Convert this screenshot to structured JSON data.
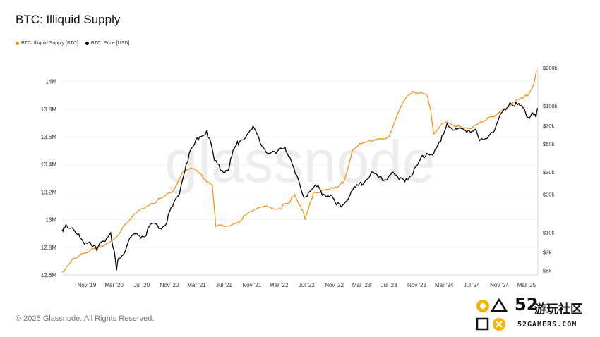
{
  "header": {
    "title": "BTC: Illiquid Supply"
  },
  "legend": [
    {
      "label": "BTC: Illiquid Supply [BTC]",
      "color": "#f7931a"
    },
    {
      "label": "BTC: Price [USD]",
      "color": "#000000"
    }
  ],
  "footer": {
    "copyright": "© 2025 Glassnode. All Rights Reserved."
  },
  "watermark": {
    "background": "glassnode",
    "logo_main": "52",
    "logo_cn": "游玩社区",
    "logo_sub": "52GAMERS.COM"
  },
  "chart_data": {
    "type": "line",
    "title": "BTC: Illiquid Supply",
    "x_tick_labels": [
      "Nov '19",
      "Mar '20",
      "Jul '20",
      "Nov '20",
      "Mar '21",
      "Jul '21",
      "Nov '21",
      "Mar '22",
      "Jul '22",
      "Nov '22",
      "Mar '23",
      "Jul '23",
      "Nov '23",
      "Mar '24",
      "Jul '24",
      "Nov '24",
      "Mar '25"
    ],
    "x_ticks": [
      "2019-11-01",
      "2020-03-01",
      "2020-07-01",
      "2020-11-01",
      "2021-03-01",
      "2021-07-01",
      "2021-11-01",
      "2022-03-01",
      "2022-07-01",
      "2022-11-01",
      "2023-03-01",
      "2023-07-01",
      "2023-11-01",
      "2024-03-01",
      "2024-07-01",
      "2024-11-01",
      "2025-03-01"
    ],
    "xlim": [
      "2019-07-15",
      "2025-04-20"
    ],
    "left_axis": {
      "ticks": [
        12.6,
        12.8,
        13,
        13.2,
        13.4,
        13.6,
        13.8,
        14
      ],
      "tick_labels": [
        "12.6M",
        "12.8M",
        "13M",
        "13.2M",
        "13.4M",
        "13.6M",
        "13.8M",
        "14M"
      ],
      "ylim": [
        12.6,
        14.1
      ],
      "unit": "M BTC"
    },
    "right_axis": {
      "scale": "log",
      "ticks": [
        5000,
        7000,
        10000,
        20000,
        30000,
        50000,
        70000,
        100000,
        200000
      ],
      "tick_labels": [
        "$5k",
        "$7k",
        "$10k",
        "$20k",
        "$30k",
        "$50k",
        "$70k",
        "$100k",
        "$200k"
      ],
      "ylim": [
        4600,
        200000
      ]
    },
    "grid": true,
    "legend_position": "top-left",
    "series": [
      {
        "name": "BTC: Illiquid Supply [BTC]",
        "axis": "left",
        "color": "#f7931a",
        "x": [
          "2019-07-15",
          "2019-09-01",
          "2019-11-01",
          "2020-01-01",
          "2020-03-01",
          "2020-05-01",
          "2020-07-01",
          "2020-08-15",
          "2020-10-01",
          "2020-11-15",
          "2021-01-01",
          "2021-02-15",
          "2021-04-01",
          "2021-05-10",
          "2021-05-25",
          "2021-07-01",
          "2021-09-01",
          "2021-11-01",
          "2022-01-01",
          "2022-03-01",
          "2022-04-15",
          "2022-05-10",
          "2022-06-05",
          "2022-06-25",
          "2022-08-01",
          "2022-10-01",
          "2022-11-15",
          "2022-12-15",
          "2023-01-20",
          "2023-03-01",
          "2023-05-01",
          "2023-07-01",
          "2023-09-01",
          "2023-10-15",
          "2023-11-15",
          "2023-12-15",
          "2024-01-01",
          "2024-01-15",
          "2024-03-01",
          "2024-05-01",
          "2024-07-01",
          "2024-09-01",
          "2024-11-01",
          "2025-01-01",
          "2025-02-15",
          "2025-03-15",
          "2025-04-05",
          "2025-04-15"
        ],
        "values": [
          12.62,
          12.72,
          12.76,
          12.81,
          12.86,
          12.98,
          13.08,
          13.12,
          13.16,
          13.2,
          13.35,
          13.37,
          13.3,
          13.25,
          12.95,
          12.95,
          12.98,
          13.06,
          13.1,
          13.08,
          13.12,
          13.18,
          13.1,
          13.0,
          13.2,
          13.22,
          13.23,
          13.28,
          13.5,
          13.55,
          13.58,
          13.6,
          13.85,
          13.93,
          13.92,
          13.9,
          13.8,
          13.62,
          13.7,
          13.68,
          13.66,
          13.72,
          13.78,
          13.85,
          13.88,
          13.92,
          14.0,
          14.08
        ]
      },
      {
        "name": "BTC: Price [USD]",
        "axis": "right",
        "color": "#000000",
        "x": [
          "2019-07-15",
          "2019-08-01",
          "2019-09-15",
          "2019-10-15",
          "2019-11-15",
          "2019-12-15",
          "2020-01-15",
          "2020-02-15",
          "2020-03-12",
          "2020-03-20",
          "2020-04-15",
          "2020-05-15",
          "2020-06-15",
          "2020-07-15",
          "2020-08-15",
          "2020-09-15",
          "2020-10-15",
          "2020-11-15",
          "2020-12-15",
          "2021-01-15",
          "2021-02-15",
          "2021-03-15",
          "2021-04-14",
          "2021-05-19",
          "2021-06-22",
          "2021-07-20",
          "2021-08-15",
          "2021-09-07",
          "2021-10-20",
          "2021-11-10",
          "2021-12-15",
          "2022-01-15",
          "2022-02-15",
          "2022-03-28",
          "2022-04-15",
          "2022-05-12",
          "2022-06-18",
          "2022-07-15",
          "2022-08-15",
          "2022-09-15",
          "2022-10-15",
          "2022-11-10",
          "2022-12-15",
          "2023-01-15",
          "2023-02-15",
          "2023-03-15",
          "2023-04-15",
          "2023-05-15",
          "2023-06-15",
          "2023-07-15",
          "2023-08-15",
          "2023-09-15",
          "2023-10-15",
          "2023-11-15",
          "2023-12-15",
          "2024-01-15",
          "2024-02-15",
          "2024-03-14",
          "2024-04-15",
          "2024-05-15",
          "2024-06-15",
          "2024-07-15",
          "2024-08-05",
          "2024-09-15",
          "2024-10-15",
          "2024-11-15",
          "2024-12-17",
          "2025-01-20",
          "2025-02-15",
          "2025-03-10",
          "2025-03-25",
          "2025-04-10",
          "2025-04-18"
        ],
        "values": [
          10500,
          11500,
          9800,
          8500,
          8400,
          7200,
          8500,
          9900,
          5000,
          6200,
          6800,
          9200,
          9500,
          9200,
          11700,
          10700,
          11400,
          16000,
          20000,
          35000,
          48000,
          57000,
          63000,
          37000,
          31000,
          31000,
          46000,
          52000,
          62000,
          67000,
          48000,
          42000,
          42000,
          47000,
          40000,
          29000,
          19000,
          21000,
          23000,
          20000,
          19500,
          16500,
          16800,
          21000,
          23500,
          25000,
          30000,
          27000,
          26000,
          30000,
          26000,
          26500,
          29000,
          37000,
          42000,
          42000,
          52000,
          72000,
          64000,
          66000,
          64000,
          65000,
          53000,
          58000,
          68000,
          90000,
          106000,
          102000,
          96000,
          80000,
          86000,
          82000,
          96000
        ]
      }
    ]
  }
}
